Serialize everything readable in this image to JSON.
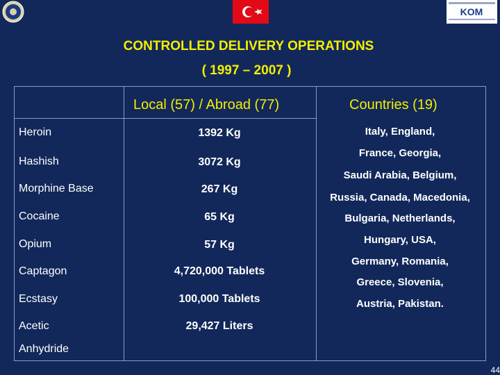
{
  "title": {
    "line1": "CONTROLLED DELIVERY OPERATIONS",
    "line2": "( 1997 – 2007 )"
  },
  "table": {
    "header_amount": "Local  (57) / Abroad (77)",
    "header_countries": "Countries (19)",
    "rows": [
      {
        "drug": "Heroin",
        "amount": "1392 Kg"
      },
      {
        "drug": "Hashish",
        "amount": "3072 Kg"
      },
      {
        "drug": "Morphine Base",
        "amount": "267 Kg"
      },
      {
        "drug": "Cocaine",
        "amount": "65 Kg"
      },
      {
        "drug": "Opium",
        "amount": "57 Kg"
      },
      {
        "drug": "Captagon",
        "amount": "4,720,000 Tablets"
      },
      {
        "drug": "Ecstasy",
        "amount": "100,000 Tablets"
      },
      {
        "drug": "Acetic",
        "amount": "29,427 Liters"
      }
    ],
    "drug_extra_line": "Anhydride",
    "countries_lines": [
      "Italy, England,",
      "France, Georgia,",
      "Saudi Arabia, Belgium,",
      "Russia, Canada, Macedonia,",
      "Bulgaria, Netherlands,",
      "Hungary, USA,",
      "Germany, Romania,",
      "Greece, Slovenia,",
      "Austria, Pakistan."
    ]
  },
  "logos": {
    "right_text": "KOM"
  },
  "page_number": "44",
  "colors": {
    "background": "#12285a",
    "title": "#f4ef00",
    "text": "#ffffff",
    "flag": "#e30a17"
  }
}
